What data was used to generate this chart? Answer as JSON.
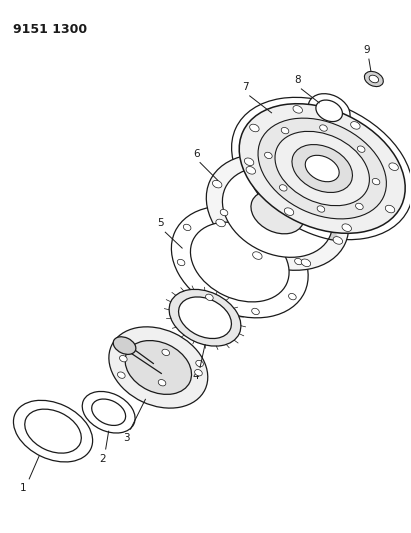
{
  "title": "9151 1300",
  "background_color": "#ffffff",
  "line_color": "#1a1a1a",
  "fig_width": 4.11,
  "fig_height": 5.33,
  "dpi": 100
}
